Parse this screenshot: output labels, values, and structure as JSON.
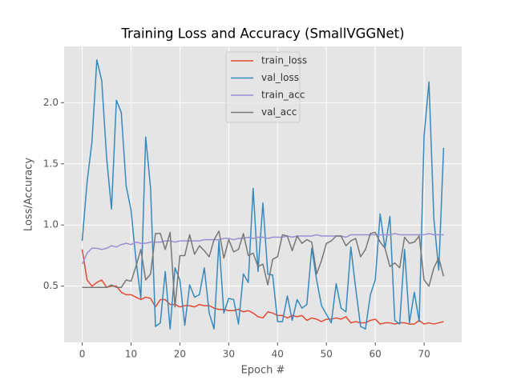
{
  "chart_data": {
    "type": "line",
    "title": "Training Loss and Accuracy (SmallVGGNet)",
    "xlabel": "Epoch #",
    "ylabel": "Loss/Accuracy",
    "x": [
      0,
      1,
      2,
      3,
      4,
      5,
      6,
      7,
      8,
      9,
      10,
      11,
      12,
      13,
      14,
      15,
      16,
      17,
      18,
      19,
      20,
      21,
      22,
      23,
      24,
      25,
      26,
      27,
      28,
      29,
      30,
      31,
      32,
      33,
      34,
      35,
      36,
      37,
      38,
      39,
      40,
      41,
      42,
      43,
      44,
      45,
      46,
      47,
      48,
      49,
      50,
      51,
      52,
      53,
      54,
      55,
      56,
      57,
      58,
      59,
      60,
      61,
      62,
      63,
      64,
      65,
      66,
      67,
      68,
      69,
      70,
      71,
      72,
      73,
      74
    ],
    "series": [
      {
        "name": "train_loss",
        "color": "#E24A33",
        "values": [
          0.8,
          0.55,
          0.5,
          0.53,
          0.55,
          0.49,
          0.5,
          0.5,
          0.45,
          0.43,
          0.43,
          0.41,
          0.39,
          0.41,
          0.4,
          0.33,
          0.39,
          0.39,
          0.35,
          0.35,
          0.33,
          0.34,
          0.34,
          0.33,
          0.35,
          0.34,
          0.34,
          0.32,
          0.31,
          0.31,
          0.3,
          0.3,
          0.31,
          0.29,
          0.3,
          0.28,
          0.25,
          0.24,
          0.29,
          0.28,
          0.26,
          0.26,
          0.24,
          0.26,
          0.25,
          0.26,
          0.22,
          0.24,
          0.23,
          0.21,
          0.23,
          0.23,
          0.24,
          0.23,
          0.25,
          0.2,
          0.21,
          0.2,
          0.2,
          0.22,
          0.23,
          0.19,
          0.2,
          0.2,
          0.19,
          0.2,
          0.2,
          0.19,
          0.19,
          0.22,
          0.19,
          0.2,
          0.19,
          0.2,
          0.21
        ]
      },
      {
        "name": "val_loss",
        "color": "#348ABD",
        "values": [
          0.87,
          1.35,
          1.68,
          2.35,
          2.18,
          1.55,
          1.13,
          2.02,
          1.92,
          1.32,
          1.12,
          0.72,
          0.4,
          1.72,
          1.3,
          0.17,
          0.2,
          0.62,
          0.15,
          0.65,
          0.55,
          0.18,
          0.51,
          0.41,
          0.43,
          0.65,
          0.28,
          0.15,
          0.87,
          0.28,
          0.4,
          0.39,
          0.19,
          0.6,
          0.53,
          1.3,
          0.62,
          1.18,
          0.6,
          0.59,
          0.21,
          0.21,
          0.42,
          0.22,
          0.39,
          0.32,
          0.35,
          0.81,
          0.55,
          0.34,
          0.27,
          0.2,
          0.52,
          0.32,
          0.29,
          0.82,
          0.48,
          0.17,
          0.15,
          0.43,
          0.55,
          1.09,
          0.81,
          1.07,
          0.22,
          0.19,
          0.8,
          0.2,
          0.45,
          0.21,
          1.73,
          2.17,
          1.05,
          0.63,
          1.63
        ]
      },
      {
        "name": "train_acc",
        "color": "#988ED5",
        "values": [
          0.68,
          0.77,
          0.81,
          0.81,
          0.8,
          0.81,
          0.83,
          0.82,
          0.84,
          0.85,
          0.84,
          0.86,
          0.85,
          0.85,
          0.86,
          0.86,
          0.86,
          0.87,
          0.87,
          0.86,
          0.87,
          0.87,
          0.87,
          0.87,
          0.87,
          0.88,
          0.88,
          0.88,
          0.88,
          0.89,
          0.89,
          0.88,
          0.89,
          0.89,
          0.9,
          0.89,
          0.9,
          0.9,
          0.89,
          0.9,
          0.9,
          0.9,
          0.91,
          0.9,
          0.91,
          0.91,
          0.91,
          0.91,
          0.92,
          0.91,
          0.91,
          0.91,
          0.91,
          0.91,
          0.9,
          0.92,
          0.92,
          0.92,
          0.92,
          0.92,
          0.92,
          0.92,
          0.92,
          0.92,
          0.93,
          0.92,
          0.92,
          0.92,
          0.92,
          0.92,
          0.92,
          0.93,
          0.92,
          0.92,
          0.92
        ]
      },
      {
        "name": "val_acc",
        "color": "#777777",
        "values": [
          0.49,
          0.49,
          0.49,
          0.49,
          0.49,
          0.49,
          0.51,
          0.49,
          0.49,
          0.55,
          0.54,
          0.66,
          0.8,
          0.55,
          0.6,
          0.93,
          0.93,
          0.8,
          0.94,
          0.33,
          0.75,
          0.75,
          0.92,
          0.76,
          0.83,
          0.79,
          0.74,
          0.88,
          0.95,
          0.73,
          0.88,
          0.78,
          0.8,
          0.93,
          0.75,
          0.77,
          0.66,
          0.68,
          0.51,
          0.72,
          0.74,
          0.92,
          0.91,
          0.79,
          0.91,
          0.85,
          0.88,
          0.86,
          0.6,
          0.71,
          0.85,
          0.87,
          0.91,
          0.91,
          0.83,
          0.87,
          0.89,
          0.74,
          0.8,
          0.93,
          0.94,
          0.86,
          0.81,
          0.66,
          0.69,
          0.65,
          0.9,
          0.85,
          0.86,
          0.91,
          0.55,
          0.5,
          0.65,
          0.73,
          0.58
        ]
      }
    ],
    "xlim": [
      -3.7,
      77.7
    ],
    "xticks": [
      0,
      10,
      20,
      30,
      40,
      50,
      60,
      70
    ],
    "ylim": [
      0.04,
      2.46
    ],
    "yticks": [
      0.5,
      {
        "value": 1,
        "label": "1.0"
      },
      1.5,
      {
        "value": 2,
        "label": "2.0"
      }
    ],
    "grid": true,
    "legend": "upper center"
  }
}
